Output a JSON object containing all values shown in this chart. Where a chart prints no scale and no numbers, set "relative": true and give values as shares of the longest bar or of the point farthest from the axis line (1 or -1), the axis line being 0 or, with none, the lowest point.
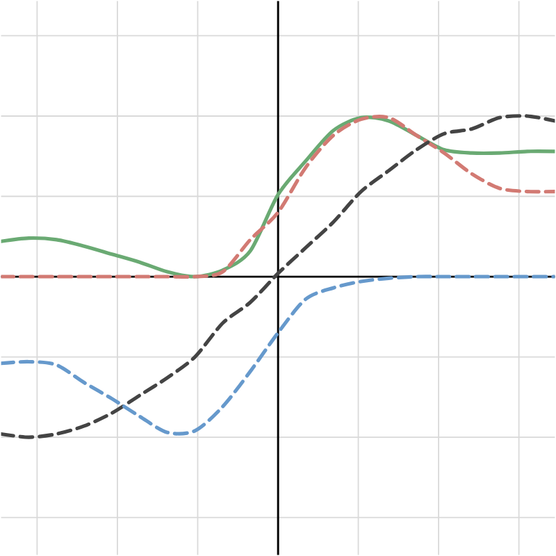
{
  "chart_data": {
    "type": "line",
    "relative": true,
    "grid": true,
    "marker": "none",
    "categories": [
      null,
      null,
      null,
      null,
      null,
      null,
      null,
      null,
      null,
      null,
      null,
      null,
      null,
      null,
      null,
      null,
      null,
      null,
      null,
      null,
      null
    ],
    "series": [
      {
        "color": "#6aaa73",
        "line_style": "solid",
        "values": [
          0.22,
          0.24,
          0.23,
          0.19,
          0.14,
          0.09,
          0.03,
          0.0,
          0.04,
          0.16,
          0.51,
          0.72,
          0.91,
          0.99,
          0.97,
          0.88,
          0.79,
          0.77,
          0.77,
          0.78,
          0.78
        ]
      },
      {
        "color": "#d27a73",
        "line_style": "dashed",
        "values": [
          0.0,
          0.0,
          0.0,
          0.0,
          0.0,
          0.0,
          0.0,
          0.0,
          0.03,
          0.23,
          0.4,
          0.68,
          0.88,
          0.98,
          0.99,
          0.88,
          0.77,
          0.64,
          0.55,
          0.53,
          0.53
        ]
      },
      {
        "color": "#444444",
        "line_style": "dashed",
        "values": [
          -0.98,
          -1.0,
          -0.98,
          -0.93,
          -0.85,
          -0.74,
          -0.63,
          -0.5,
          -0.29,
          -0.16,
          0.02,
          0.18,
          0.34,
          0.53,
          0.66,
          0.79,
          0.89,
          0.92,
          0.99,
          1.0,
          0.97
        ]
      },
      {
        "color": "#6699cc",
        "line_style": "dashed",
        "values": [
          -0.54,
          -0.53,
          -0.55,
          -0.66,
          -0.76,
          -0.87,
          -0.97,
          -0.96,
          -0.81,
          -0.59,
          -0.35,
          -0.14,
          -0.07,
          -0.03,
          -0.01,
          0.0,
          0.0,
          0.0,
          0.0,
          0.0,
          0.0
        ]
      }
    ]
  }
}
